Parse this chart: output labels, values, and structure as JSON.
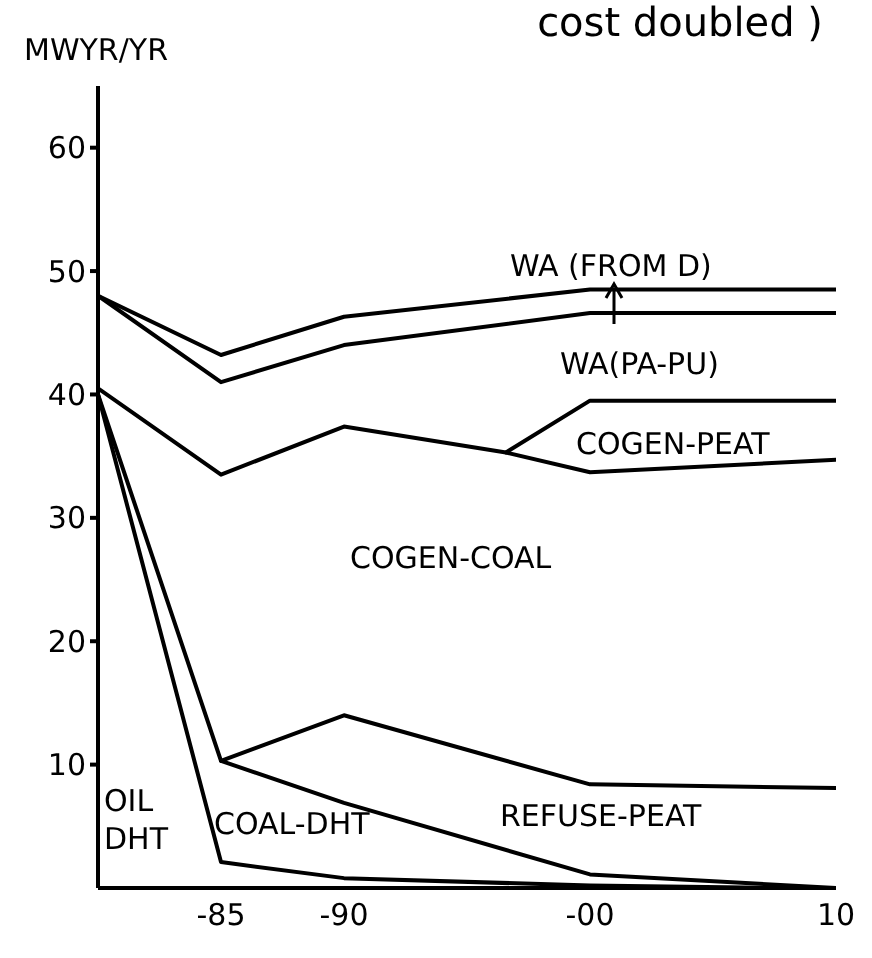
{
  "chart_data": {
    "type": "line",
    "title": "cost doubled )",
    "ylabel": "MWYR/YR",
    "xlim": [
      "1980",
      "2010"
    ],
    "xticks": [
      {
        "value": "1985",
        "label": "-85"
      },
      {
        "value": "1990",
        "label": "-90"
      },
      {
        "value": "2000",
        "label": "-00"
      },
      {
        "value": "2010",
        "label": "10"
      }
    ],
    "ylim": [
      0,
      65
    ],
    "yticks": [
      10,
      20,
      30,
      40,
      50,
      60
    ],
    "grid": false,
    "marker": "none",
    "line_style": "solid",
    "series": [
      {
        "color": "#000000",
        "x": [
          "1980",
          "1985",
          "1990",
          "2000",
          "2010"
        ],
        "values": [
          48,
          43.2,
          46.3,
          48.5,
          48.5
        ]
      },
      {
        "color": "#000000",
        "x": [
          "1980",
          "1985",
          "1990",
          "2000",
          "2010"
        ],
        "values": [
          48,
          41,
          44,
          46.6,
          46.6
        ]
      },
      {
        "color": "#000000",
        "x": [
          "1996-08",
          "2000",
          "2010"
        ],
        "values": [
          35.3,
          39.5,
          39.5
        ]
      },
      {
        "color": "#000000",
        "x": [
          "1980",
          "1985",
          "1990",
          "1996-08",
          "2000",
          "2010"
        ],
        "values": [
          40.5,
          33.5,
          37.4,
          35.3,
          33.7,
          34.7
        ]
      },
      {
        "color": "#000000",
        "x": [
          "1985",
          "1990",
          "2000",
          "2010"
        ],
        "values": [
          10.3,
          14,
          8.4,
          8.1
        ]
      },
      {
        "color": "#000000",
        "x": [
          "1980",
          "1985",
          "1990",
          "2000",
          "2010"
        ],
        "values": [
          40,
          10.3,
          6.9,
          1.1,
          0
        ]
      },
      {
        "color": "#000000",
        "x": [
          "1980",
          "1985",
          "1990",
          "2000",
          "2008"
        ],
        "values": [
          40,
          2.1,
          0.8,
          0.2,
          0
        ]
      }
    ],
    "annotations": [
      "WA (FROM D)",
      "WA(PA-PU)",
      "COGEN-PEAT",
      "COGEN-COAL",
      "REFUSE-PEAT",
      "COAL-DHT",
      "OIL\nDHT"
    ]
  }
}
